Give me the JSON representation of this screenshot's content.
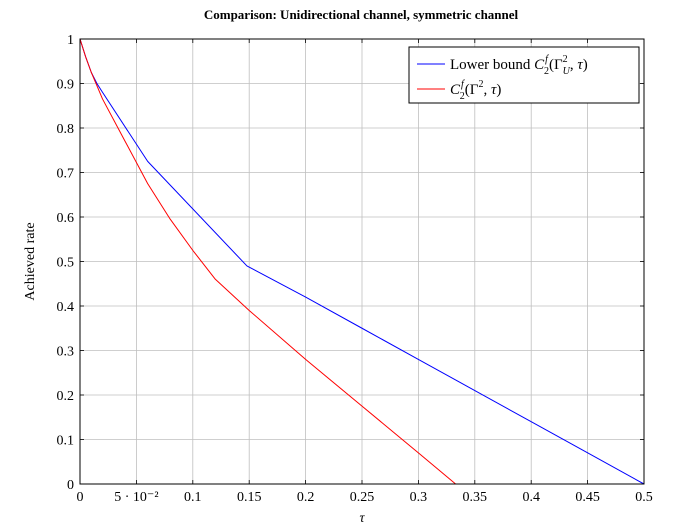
{
  "chart_data": {
    "type": "line",
    "title": "Comparison: Unidirectional channel, symmetric channel",
    "xlabel": "τ",
    "ylabel": "Achieved rate",
    "xlim": [
      0,
      0.5
    ],
    "ylim": [
      0,
      1
    ],
    "grid": true,
    "legend_position": "top-right",
    "x_ticks": [
      {
        "value": 0,
        "label": "0"
      },
      {
        "value": 0.05,
        "label": "5 · 10⁻²"
      },
      {
        "value": 0.1,
        "label": "0.1"
      },
      {
        "value": 0.15,
        "label": "0.15"
      },
      {
        "value": 0.2,
        "label": "0.2"
      },
      {
        "value": 0.25,
        "label": "0.25"
      },
      {
        "value": 0.3,
        "label": "0.3"
      },
      {
        "value": 0.35,
        "label": "0.35"
      },
      {
        "value": 0.4,
        "label": "0.4"
      },
      {
        "value": 0.45,
        "label": "0.45"
      },
      {
        "value": 0.5,
        "label": "0.5"
      }
    ],
    "y_ticks": [
      {
        "value": 0,
        "label": "0"
      },
      {
        "value": 0.1,
        "label": "0.1"
      },
      {
        "value": 0.2,
        "label": "0.2"
      },
      {
        "value": 0.3,
        "label": "0.3"
      },
      {
        "value": 0.4,
        "label": "0.4"
      },
      {
        "value": 0.5,
        "label": "0.5"
      },
      {
        "value": 0.6,
        "label": "0.6"
      },
      {
        "value": 0.7,
        "label": "0.7"
      },
      {
        "value": 0.8,
        "label": "0.8"
      },
      {
        "value": 0.9,
        "label": "0.9"
      },
      {
        "value": 1,
        "label": "1"
      }
    ],
    "series": [
      {
        "name": "Lower bound C₂ᶠ(Γ²ᵤ, τ)",
        "legend_prefix": "Lower bound ",
        "color": "#0000ff",
        "x": [
          0,
          0.005,
          0.01,
          0.015,
          0.02,
          0.06,
          0.148,
          0.2,
          0.25,
          0.3,
          0.35,
          0.4,
          0.45,
          0.5
        ],
        "y": [
          1.0,
          0.96,
          0.925,
          0.9,
          0.88,
          0.725,
          0.49,
          0.42,
          0.35,
          0.28,
          0.21,
          0.14,
          0.07,
          0.0
        ]
      },
      {
        "name": "C₂ᶠ(Γ², τ)",
        "legend_prefix": "",
        "color": "#ff0000",
        "x": [
          0,
          0.005,
          0.01,
          0.015,
          0.02,
          0.04,
          0.06,
          0.08,
          0.1,
          0.12,
          0.15,
          0.2,
          0.25,
          0.3,
          0.333,
          0.35,
          0.4,
          0.45,
          0.5
        ],
        "y": [
          1.0,
          0.96,
          0.925,
          0.895,
          0.865,
          0.77,
          0.675,
          0.595,
          0.525,
          0.46,
          0.39,
          0.28,
          0.175,
          0.07,
          0.0,
          0.0,
          0.0,
          0.0,
          0.0
        ]
      }
    ]
  }
}
